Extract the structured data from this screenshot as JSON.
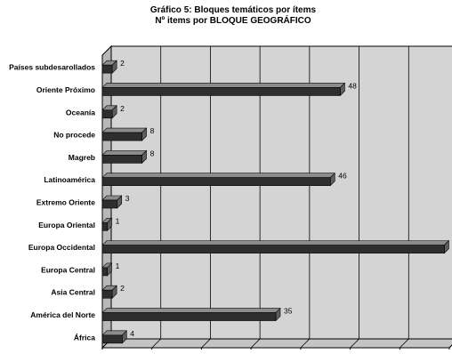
{
  "chart_data": {
    "type": "bar",
    "orientation": "horizontal",
    "style": "3d",
    "title": "Gráfico 5: Bloques temáticos por ítems",
    "subtitle": "Nº items por BLOQUE GEOGRÁFICO",
    "categories": [
      "Países subdesarollados",
      "Oriente Próximo",
      "Oceanía",
      "No procede",
      "Magreb",
      "Latinoamérica",
      "Extremo Oriente",
      "Europa Oriental",
      "Europa Occidental",
      "Europa Central",
      "Asia Central",
      "América del Norte",
      "África"
    ],
    "values": [
      2,
      48,
      2,
      8,
      8,
      46,
      3,
      1,
      69,
      1,
      2,
      35,
      4
    ],
    "value_labels": [
      "2",
      "48",
      "2",
      "8",
      "8",
      "46",
      "3",
      "1",
      "69",
      "1",
      "2",
      "35",
      "4"
    ],
    "xlim": [
      0,
      70
    ],
    "xticks": [
      "0",
      "10",
      "20",
      "30",
      "40",
      "50",
      "60",
      "70"
    ],
    "grid": true,
    "colors": {
      "plot_back": "#d4d4d4",
      "plot_side": "#b8b8b8",
      "plot_floor": "#c4c4c4",
      "bar_front": "#2e2e2e",
      "bar_top": "#8c8c8c",
      "bar_side": "#5e5e5e",
      "grid": "#000000",
      "axis": "#000000"
    }
  }
}
